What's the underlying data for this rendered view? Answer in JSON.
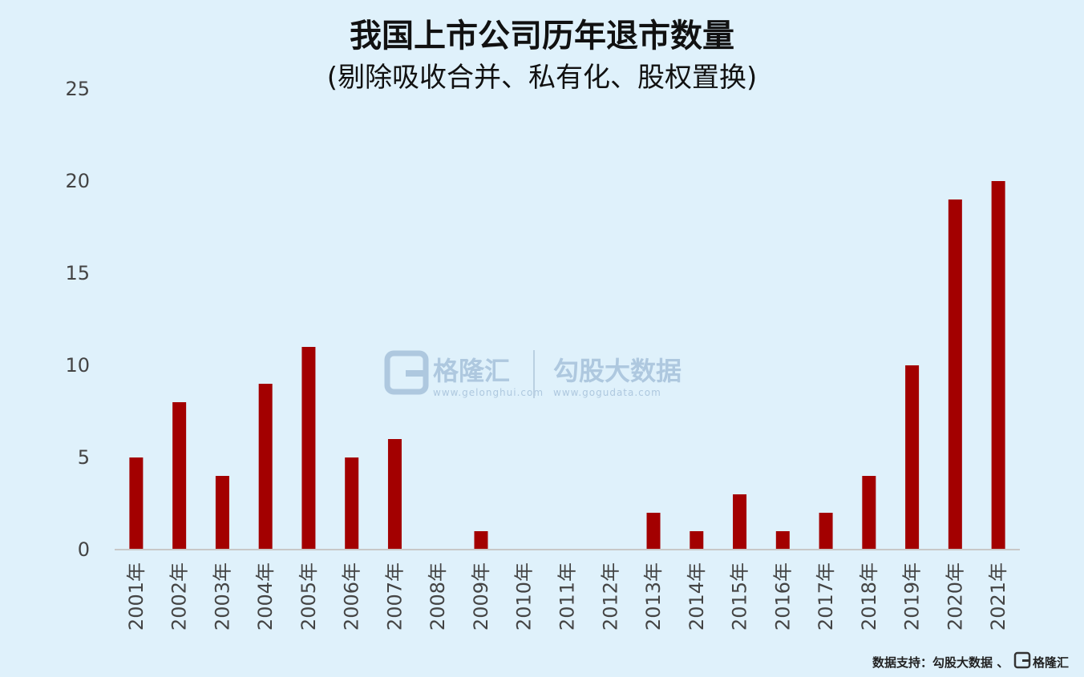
{
  "chart_data": {
    "type": "bar",
    "title": "我国上市公司历年退市数量",
    "subtitle": "(剔除吸收合并、私有化、股权置换)",
    "categories": [
      "2001年",
      "2002年",
      "2003年",
      "2004年",
      "2005年",
      "2006年",
      "2007年",
      "2008年",
      "2009年",
      "2010年",
      "2011年",
      "2012年",
      "2013年",
      "2014年",
      "2015年",
      "2016年",
      "2017年",
      "2018年",
      "2019年",
      "2020年",
      "2021年"
    ],
    "values": [
      5,
      8,
      4,
      9,
      11,
      5,
      6,
      0,
      1,
      0,
      0,
      0,
      2,
      1,
      3,
      1,
      2,
      4,
      10,
      19,
      20
    ],
    "ylim": [
      0,
      25
    ],
    "yticks": [
      0,
      5,
      10,
      15,
      20,
      25
    ],
    "bar_color": "#a30000",
    "grid": false
  },
  "watermark": {
    "brand1": "格隆汇",
    "brand1_url": "www.gelonghui.com",
    "brand2": "勾股大数据",
    "brand2_url": "www.gogudata.com"
  },
  "source": {
    "label": "数据支持：勾股大数据 、",
    "brand": "格隆汇"
  }
}
